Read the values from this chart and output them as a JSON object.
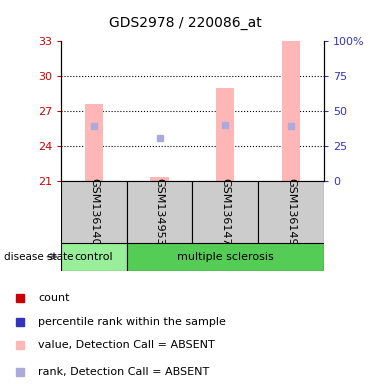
{
  "title": "GDS2978 / 220086_at",
  "samples": [
    "GSM136140",
    "GSM134953",
    "GSM136147",
    "GSM136149"
  ],
  "ylim_left": [
    21,
    33
  ],
  "ylim_right": [
    0,
    100
  ],
  "yticks_left": [
    21,
    24,
    27,
    30,
    33
  ],
  "yticks_right": [
    0,
    25,
    50,
    75,
    100
  ],
  "ytick_labels_right": [
    "0",
    "25",
    "50",
    "75",
    "100%"
  ],
  "bar_bottom": 21,
  "pink_bar_color": "#FFB6B6",
  "blue_dot_color": "#AAAADD",
  "pink_values": [
    27.6,
    21.35,
    29.0,
    33.0
  ],
  "blue_rank_values": [
    25.7,
    24.7,
    25.8,
    25.7
  ],
  "grid_yticks": [
    24,
    27,
    30
  ],
  "legend_colors": [
    "#CC0000",
    "#3333BB",
    "#FFB6B6",
    "#AAAADD"
  ],
  "legend_labels": [
    "count",
    "percentile rank within the sample",
    "value, Detection Call = ABSENT",
    "rank, Detection Call = ABSENT"
  ],
  "control_color": "#99EE99",
  "ms_color": "#55CC55",
  "sample_bg_color": "#CCCCCC",
  "disease_state_label": "disease state",
  "tick_left_color": "#CC0000",
  "tick_right_color": "#3333BB",
  "title_fontsize": 10,
  "axis_fontsize": 8,
  "label_fontsize": 8,
  "legend_fontsize": 8
}
